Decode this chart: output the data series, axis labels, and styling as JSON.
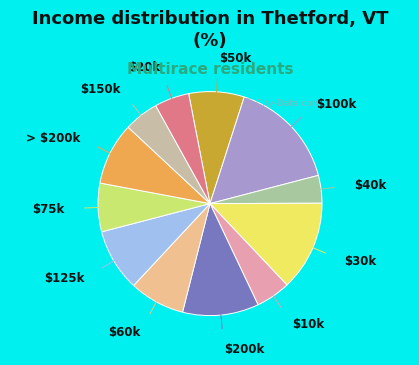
{
  "title": "Income distribution in Thetford, VT\n(%)",
  "subtitle": "Multirace residents",
  "labels": [
    "$50k",
    "$100k",
    "$40k",
    "$30k",
    "$10k",
    "$200k",
    "$60k",
    "$125k",
    "$75k",
    "> $200k",
    "$150k",
    "$20k"
  ],
  "values": [
    8,
    16,
    4,
    13,
    5,
    11,
    8,
    9,
    7,
    9,
    5,
    5
  ],
  "colors": [
    "#c8a830",
    "#a898d0",
    "#a8c8a0",
    "#f0ea60",
    "#e8a0b0",
    "#7878c0",
    "#f0c090",
    "#a0c0f0",
    "#c8e870",
    "#f0a850",
    "#c8bea8",
    "#e07888"
  ],
  "bg_color": "#00efef",
  "plot_bg": "#e8f8f0",
  "title_fontsize": 13,
  "subtitle_fontsize": 11,
  "label_fontsize": 8.5,
  "watermark": "City-Data.com"
}
